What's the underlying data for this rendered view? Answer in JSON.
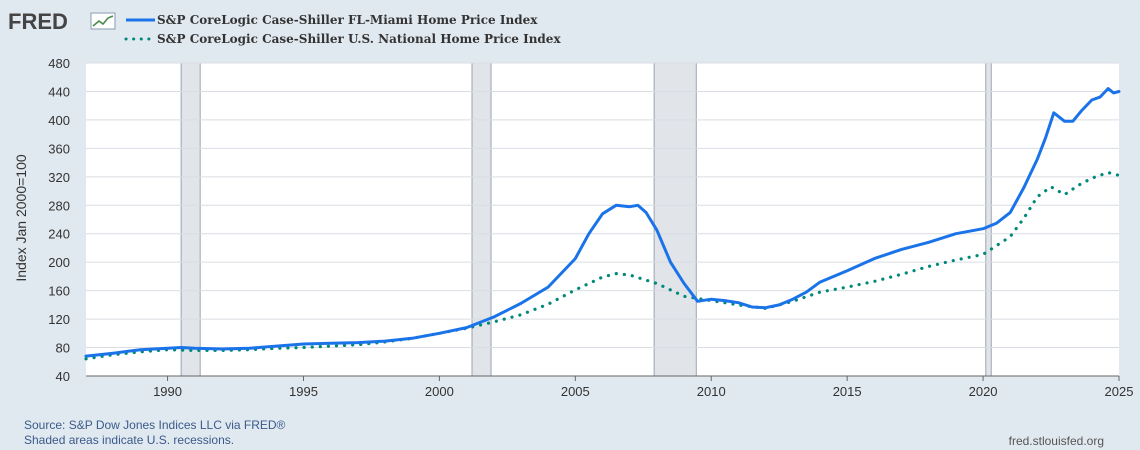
{
  "header": {
    "logo": "FRED",
    "logo_icon": "trend-line-icon"
  },
  "footer": {
    "source": "Source: S&P Dow Jones Indices LLC via FRED®",
    "recession_note": "Shaded areas indicate U.S. recessions.",
    "site": "fred.stlouisfed.org"
  },
  "colors": {
    "miami": "#1a73e8",
    "national": "#00897b",
    "recession": "#e1e5ea",
    "plot_bg": "#ffffff",
    "page_bg": "#e1e9f0"
  },
  "chart_data": {
    "type": "line",
    "title": "",
    "xlabel": "",
    "ylabel": "Index Jan 2000=100",
    "xlim": [
      1987.0,
      2025.0
    ],
    "ylim": [
      40,
      480
    ],
    "x_ticks": [
      1990,
      1995,
      2000,
      2005,
      2010,
      2015,
      2020,
      2025
    ],
    "y_ticks": [
      40,
      80,
      120,
      160,
      200,
      240,
      280,
      320,
      360,
      400,
      440,
      480
    ],
    "grid": true,
    "legend_position": "top-left",
    "recessions": [
      [
        1990.5,
        1991.2
      ],
      [
        2001.2,
        2001.9
      ],
      [
        2007.9,
        2009.45
      ],
      [
        2020.1,
        2020.3
      ]
    ],
    "series": [
      {
        "name": "S&P CoreLogic Case-Shiller FL-Miami Home Price Index",
        "style": "solid",
        "points": [
          [
            1987.0,
            68
          ],
          [
            1988.0,
            72
          ],
          [
            1989.0,
            77
          ],
          [
            1990.0,
            79
          ],
          [
            1990.5,
            80
          ],
          [
            1991.0,
            79
          ],
          [
            1992.0,
            78
          ],
          [
            1993.0,
            79
          ],
          [
            1994.0,
            82
          ],
          [
            1995.0,
            85
          ],
          [
            1996.0,
            86
          ],
          [
            1997.0,
            87
          ],
          [
            1998.0,
            89
          ],
          [
            1999.0,
            93
          ],
          [
            2000.0,
            100
          ],
          [
            2001.0,
            108
          ],
          [
            2002.0,
            123
          ],
          [
            2003.0,
            142
          ],
          [
            2004.0,
            165
          ],
          [
            2005.0,
            205
          ],
          [
            2005.5,
            240
          ],
          [
            2006.0,
            268
          ],
          [
            2006.5,
            280
          ],
          [
            2007.0,
            278
          ],
          [
            2007.3,
            280
          ],
          [
            2007.6,
            270
          ],
          [
            2008.0,
            245
          ],
          [
            2008.5,
            200
          ],
          [
            2009.0,
            170
          ],
          [
            2009.5,
            145
          ],
          [
            2010.0,
            148
          ],
          [
            2010.5,
            146
          ],
          [
            2011.0,
            143
          ],
          [
            2011.5,
            137
          ],
          [
            2012.0,
            136
          ],
          [
            2012.5,
            140
          ],
          [
            2013.0,
            148
          ],
          [
            2013.5,
            158
          ],
          [
            2014.0,
            172
          ],
          [
            2015.0,
            188
          ],
          [
            2016.0,
            205
          ],
          [
            2017.0,
            218
          ],
          [
            2018.0,
            228
          ],
          [
            2019.0,
            240
          ],
          [
            2020.0,
            247
          ],
          [
            2020.5,
            255
          ],
          [
            2021.0,
            270
          ],
          [
            2021.5,
            305
          ],
          [
            2022.0,
            345
          ],
          [
            2022.3,
            375
          ],
          [
            2022.6,
            410
          ],
          [
            2023.0,
            398
          ],
          [
            2023.3,
            398
          ],
          [
            2023.6,
            412
          ],
          [
            2024.0,
            428
          ],
          [
            2024.3,
            432
          ],
          [
            2024.6,
            444
          ],
          [
            2024.8,
            438
          ],
          [
            2025.0,
            440
          ]
        ]
      },
      {
        "name": "S&P CoreLogic Case-Shiller U.S. National Home Price Index",
        "style": "dotted",
        "points": [
          [
            1987.0,
            64
          ],
          [
            1988.0,
            70
          ],
          [
            1989.0,
            74
          ],
          [
            1990.0,
            77
          ],
          [
            1991.0,
            76
          ],
          [
            1992.0,
            76
          ],
          [
            1993.0,
            77
          ],
          [
            1994.0,
            79
          ],
          [
            1995.0,
            80
          ],
          [
            1996.0,
            82
          ],
          [
            1997.0,
            84
          ],
          [
            1998.0,
            88
          ],
          [
            1999.0,
            93
          ],
          [
            2000.0,
            100
          ],
          [
            2001.0,
            107
          ],
          [
            2002.0,
            116
          ],
          [
            2003.0,
            126
          ],
          [
            2004.0,
            141
          ],
          [
            2005.0,
            161
          ],
          [
            2006.0,
            179
          ],
          [
            2006.5,
            184
          ],
          [
            2007.0,
            182
          ],
          [
            2008.0,
            170
          ],
          [
            2009.0,
            152
          ],
          [
            2010.0,
            146
          ],
          [
            2011.0,
            140
          ],
          [
            2012.0,
            135
          ],
          [
            2013.0,
            145
          ],
          [
            2014.0,
            158
          ],
          [
            2015.0,
            165
          ],
          [
            2016.0,
            173
          ],
          [
            2017.0,
            183
          ],
          [
            2018.0,
            194
          ],
          [
            2019.0,
            203
          ],
          [
            2020.0,
            211
          ],
          [
            2021.0,
            236
          ],
          [
            2021.5,
            262
          ],
          [
            2022.0,
            292
          ],
          [
            2022.5,
            306
          ],
          [
            2023.0,
            295
          ],
          [
            2023.5,
            308
          ],
          [
            2024.0,
            318
          ],
          [
            2024.6,
            326
          ],
          [
            2025.0,
            322
          ]
        ]
      }
    ]
  }
}
